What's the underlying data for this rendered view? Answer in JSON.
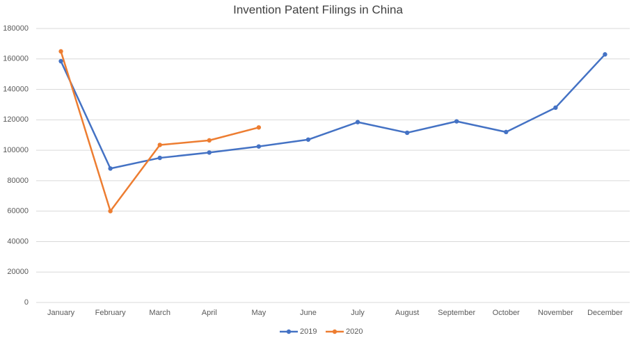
{
  "chart_data": {
    "type": "line",
    "title": "Invention Patent Filings in China",
    "categories": [
      "January",
      "February",
      "March",
      "April",
      "May",
      "June",
      "July",
      "August",
      "September",
      "October",
      "November",
      "December"
    ],
    "series": [
      {
        "name": "2019",
        "color": "#4472c4",
        "values": [
          158500,
          88000,
          95000,
          98500,
          102500,
          107000,
          118500,
          111500,
          119000,
          112000,
          128000,
          163000
        ]
      },
      {
        "name": "2020",
        "color": "#ed7d31",
        "values": [
          165000,
          60000,
          103500,
          106500,
          115000,
          null,
          null,
          null,
          null,
          null,
          null,
          null
        ]
      }
    ],
    "ylim": [
      0,
      180000
    ],
    "yticks": [
      0,
      20000,
      40000,
      60000,
      80000,
      100000,
      120000,
      140000,
      160000,
      180000
    ],
    "grid": true,
    "legend": "bottom"
  }
}
